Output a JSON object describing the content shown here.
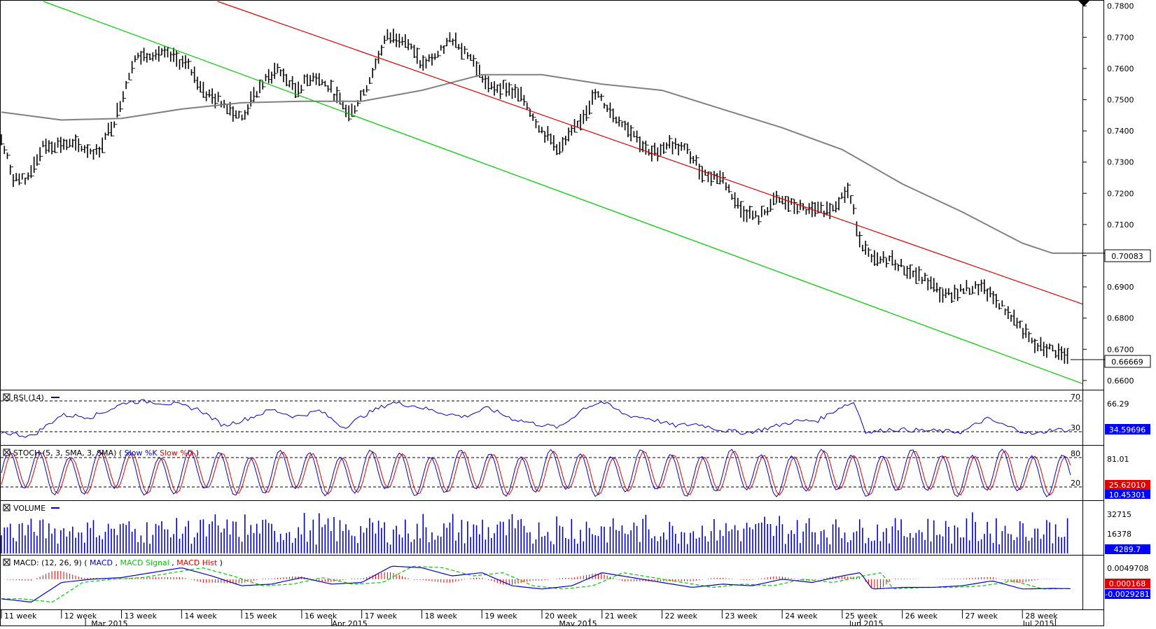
{
  "chart_data": [
    {
      "type": "line",
      "panel": "price",
      "title": "",
      "bar_style": "hlc_bars",
      "ylim": [
        0.6575,
        0.7815
      ],
      "y_ticks": [
        "0.7800",
        "0.7700",
        "0.7600",
        "0.7500",
        "0.7400",
        "0.7300",
        "0.7200",
        "0.7100",
        "0.7000",
        "0.6900",
        "0.6800",
        "0.6700",
        "0.6600"
      ],
      "x_range_weeks": [
        10.5,
        28.5
      ],
      "price_path": [
        [
          10.5,
          0.737
        ],
        [
          10.7,
          0.725
        ],
        [
          10.9,
          0.724
        ],
        [
          11.2,
          0.735
        ],
        [
          11.5,
          0.736
        ],
        [
          11.8,
          0.735
        ],
        [
          12.1,
          0.733
        ],
        [
          12.4,
          0.744
        ],
        [
          12.7,
          0.763
        ],
        [
          13.0,
          0.765
        ],
        [
          13.3,
          0.764
        ],
        [
          13.6,
          0.761
        ],
        [
          13.9,
          0.752
        ],
        [
          14.2,
          0.749
        ],
        [
          14.5,
          0.744
        ],
        [
          14.8,
          0.754
        ],
        [
          15.1,
          0.76
        ],
        [
          15.4,
          0.753
        ],
        [
          15.7,
          0.758
        ],
        [
          16.0,
          0.753
        ],
        [
          16.3,
          0.745
        ],
        [
          16.6,
          0.755
        ],
        [
          16.9,
          0.77
        ],
        [
          17.2,
          0.77
        ],
        [
          17.5,
          0.761
        ],
        [
          17.8,
          0.765
        ],
        [
          18.0,
          0.77
        ],
        [
          18.3,
          0.764
        ],
        [
          18.6,
          0.754
        ],
        [
          18.9,
          0.754
        ],
        [
          19.2,
          0.75
        ],
        [
          19.5,
          0.74
        ],
        [
          19.8,
          0.734
        ],
        [
          20.1,
          0.742
        ],
        [
          20.4,
          0.752
        ],
        [
          20.7,
          0.745
        ],
        [
          21.0,
          0.74
        ],
        [
          21.3,
          0.732
        ],
        [
          21.6,
          0.736
        ],
        [
          21.9,
          0.734
        ],
        [
          22.2,
          0.726
        ],
        [
          22.5,
          0.725
        ],
        [
          22.8,
          0.715
        ],
        [
          23.1,
          0.712
        ],
        [
          23.4,
          0.718
        ],
        [
          23.7,
          0.716
        ],
        [
          24.0,
          0.714
        ],
        [
          24.3,
          0.715
        ],
        [
          24.6,
          0.721
        ],
        [
          24.8,
          0.705
        ],
        [
          25.0,
          0.698
        ],
        [
          25.3,
          0.699
        ],
        [
          25.6,
          0.695
        ],
        [
          25.9,
          0.692
        ],
        [
          26.2,
          0.687
        ],
        [
          26.5,
          0.689
        ],
        [
          26.8,
          0.69
        ],
        [
          27.1,
          0.685
        ],
        [
          27.4,
          0.679
        ],
        [
          27.7,
          0.671
        ],
        [
          28.0,
          0.67
        ],
        [
          28.3,
          0.6667
        ]
      ],
      "moving_average": [
        [
          10.5,
          0.746
        ],
        [
          11.5,
          0.7435
        ],
        [
          12.5,
          0.744
        ],
        [
          13.5,
          0.747
        ],
        [
          14.5,
          0.749
        ],
        [
          15.5,
          0.7495
        ],
        [
          16.5,
          0.7495
        ],
        [
          17.5,
          0.753
        ],
        [
          18.5,
          0.758
        ],
        [
          19.5,
          0.758
        ],
        [
          20.5,
          0.755
        ],
        [
          21.5,
          0.753
        ],
        [
          22.5,
          0.747
        ],
        [
          23.5,
          0.741
        ],
        [
          24.5,
          0.734
        ],
        [
          25.5,
          0.723
        ],
        [
          26.5,
          0.714
        ],
        [
          27.5,
          0.704
        ],
        [
          28.0,
          0.7008
        ],
        [
          28.3,
          0.7008
        ]
      ],
      "channel_upper": [
        [
          14.1,
          0.7815
        ],
        [
          28.5,
          0.6845
        ]
      ],
      "channel_lower": [
        [
          11.2,
          0.7815
        ],
        [
          28.5,
          0.659
        ]
      ],
      "last_price_label": "0.66669",
      "ma_value_label": "0.70083"
    },
    {
      "type": "line",
      "panel": "rsi",
      "legend": "RSI (14)",
      "ylim": [
        20,
        78
      ],
      "ref_levels": [
        {
          "value": 70,
          "label": "70"
        },
        {
          "value": 30,
          "label": "30"
        }
      ],
      "axis_label": "66.29",
      "series": [
        {
          "name": "RSI (14)",
          "color": "#0000cc",
          "values": [
            [
              10.5,
              33
            ],
            [
              11.0,
              28
            ],
            [
              11.5,
              52
            ],
            [
              12.0,
              50
            ],
            [
              12.3,
              58
            ],
            [
              12.6,
              67
            ],
            [
              13.0,
              67
            ],
            [
              13.4,
              64
            ],
            [
              13.8,
              58
            ],
            [
              14.2,
              40
            ],
            [
              14.6,
              48
            ],
            [
              15.0,
              58
            ],
            [
              15.4,
              50
            ],
            [
              15.8,
              57
            ],
            [
              16.2,
              38
            ],
            [
              16.6,
              54
            ],
            [
              17.0,
              66
            ],
            [
              17.4,
              62
            ],
            [
              17.8,
              55
            ],
            [
              18.2,
              50
            ],
            [
              18.6,
              60
            ],
            [
              19.0,
              48
            ],
            [
              19.4,
              42
            ],
            [
              19.8,
              38
            ],
            [
              20.2,
              60
            ],
            [
              20.5,
              67
            ],
            [
              20.9,
              52
            ],
            [
              21.3,
              48
            ],
            [
              21.7,
              40
            ],
            [
              22.1,
              42
            ],
            [
              22.5,
              35
            ],
            [
              22.9,
              32
            ],
            [
              23.3,
              38
            ],
            [
              23.7,
              45
            ],
            [
              24.1,
              46
            ],
            [
              24.5,
              62
            ],
            [
              24.7,
              66
            ],
            [
              24.9,
              32
            ],
            [
              25.3,
              36
            ],
            [
              25.7,
              35
            ],
            [
              26.1,
              34
            ],
            [
              26.5,
              33
            ],
            [
              26.9,
              48
            ],
            [
              27.3,
              38
            ],
            [
              27.7,
              30
            ],
            [
              28.0,
              36
            ],
            [
              28.3,
              34.6
            ]
          ]
        }
      ],
      "last_value_label": "34.59696"
    },
    {
      "type": "line",
      "panel": "stoch",
      "legend": "STOCH (5, 3, SMA, 3, SMA)",
      "ylim": [
        0,
        100
      ],
      "ref_levels": [
        {
          "value": 80,
          "label": "80"
        },
        {
          "value": 20,
          "label": "20"
        }
      ],
      "axis_label": "81.01",
      "series": [
        {
          "name": "Slow %K",
          "color": "#0000cc"
        },
        {
          "name": "Slow %D",
          "color": "#e00000"
        }
      ],
      "last_value_labels": [
        "25.62010",
        "10.45301"
      ]
    },
    {
      "type": "bar",
      "panel": "volume",
      "legend": "VOLUME",
      "ylim": [
        0,
        46000
      ],
      "axis_labels": [
        "32715",
        "16378"
      ],
      "series": [
        {
          "name": "VOLUME",
          "color": "#0000cc"
        }
      ],
      "last_value_label": "4289.7"
    },
    {
      "type": "line",
      "panel": "macd",
      "legend": "MACD: (12, 26, 9)",
      "ylim": [
        -0.0088,
        0.0068
      ],
      "axis_label": "0.0049708",
      "series": [
        {
          "name": "MACD",
          "color": "#0000cc",
          "values": [
            [
              10.5,
              -0.006
            ],
            [
              11.0,
              -0.007
            ],
            [
              11.5,
              -0.001
            ],
            [
              12.0,
              0.0
            ],
            [
              12.5,
              0.0005
            ],
            [
              13.0,
              0.002
            ],
            [
              13.5,
              0.0035
            ],
            [
              14.0,
              0.001
            ],
            [
              14.5,
              -0.002
            ],
            [
              15.0,
              -0.0015
            ],
            [
              15.5,
              0.0005
            ],
            [
              16.0,
              -0.0015
            ],
            [
              16.5,
              -0.001
            ],
            [
              17.0,
              0.004
            ],
            [
              17.5,
              0.0035
            ],
            [
              18.0,
              0.001
            ],
            [
              18.5,
              0.002
            ],
            [
              19.0,
              -0.002
            ],
            [
              19.5,
              -0.003
            ],
            [
              20.0,
              -0.002
            ],
            [
              20.5,
              0.002
            ],
            [
              21.0,
              0.0005
            ],
            [
              21.5,
              -0.001
            ],
            [
              22.0,
              -0.0025
            ],
            [
              22.5,
              -0.0015
            ],
            [
              23.0,
              -0.002
            ],
            [
              23.5,
              0.0
            ],
            [
              24.0,
              -0.001
            ],
            [
              24.5,
              0.001
            ],
            [
              24.8,
              0.002
            ],
            [
              25.0,
              -0.003
            ],
            [
              25.5,
              -0.0025
            ],
            [
              26.0,
              -0.0025
            ],
            [
              26.5,
              -0.002
            ],
            [
              27.0,
              -0.0005
            ],
            [
              27.5,
              -0.003
            ],
            [
              28.0,
              -0.0028
            ],
            [
              28.3,
              -0.0029
            ]
          ]
        },
        {
          "name": "MACD Signal",
          "color": "#00cc00",
          "dashed": true
        },
        {
          "name": "MACD Hist",
          "color": "#e00000"
        }
      ],
      "last_value_labels": [
        "0.000168",
        "-0.0029281"
      ]
    }
  ],
  "x_axis": {
    "week_labels": [
      "11 week",
      "12 week",
      "13 week",
      "14 week",
      "15 week",
      "16 week",
      "17 week",
      "18 week",
      "19 week",
      "20 week",
      "21 week",
      "22 week",
      "23 week",
      "24 week",
      "25 week",
      "26 week",
      "27 week",
      "28 week"
    ],
    "month_labels": [
      "Mar 2015",
      "Apr 2015",
      "May 2015",
      "Jun 2015",
      "Jul 2015"
    ]
  },
  "colors": {
    "price_bars": "#000000",
    "ma": "#808080",
    "channel_upper": "#e00000",
    "channel_lower": "#00cc00",
    "indicator_blue": "#0000cc",
    "indicator_red": "#e00000",
    "indicator_green": "#00cc00",
    "label_box_fill": "#ffffff",
    "hist_label_fill": "#e00000",
    "blue_label_fill": "#0000ff"
  }
}
